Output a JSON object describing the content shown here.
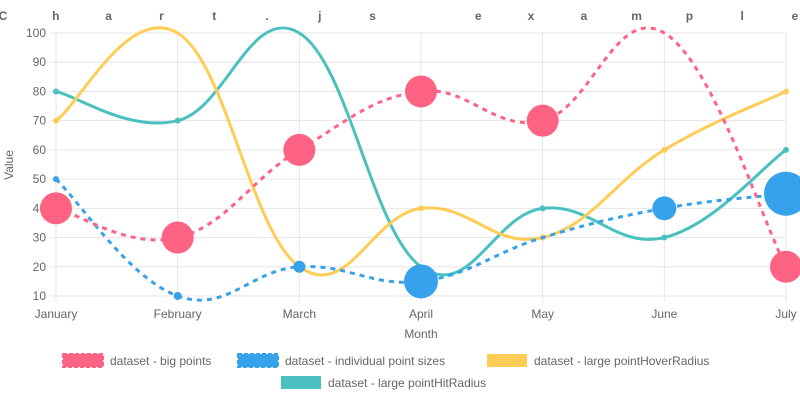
{
  "chart_data": {
    "type": "line",
    "title": "Chart.js example",
    "xlabel": "Month",
    "ylabel": "Value",
    "ylim": [
      10,
      100
    ],
    "yticks": [
      10,
      20,
      30,
      40,
      50,
      60,
      70,
      80,
      90,
      100
    ],
    "grid": true,
    "legend_position": "bottom",
    "categories": [
      "January",
      "February",
      "March",
      "April",
      "May",
      "June",
      "July"
    ],
    "series": [
      {
        "name": "dataset - big points",
        "values": [
          40,
          30,
          60,
          80,
          70,
          100,
          20
        ],
        "color": "#ff6384",
        "dashed": true,
        "point_radius": [
          16,
          16,
          16,
          16,
          16,
          0,
          16
        ]
      },
      {
        "name": "dataset - individual point sizes",
        "values": [
          50,
          10,
          20,
          15,
          30,
          40,
          45
        ],
        "color": "#36a2eb",
        "dashed": true,
        "point_radius": [
          3,
          4,
          6,
          17,
          0,
          12,
          22
        ]
      },
      {
        "name": "dataset - large pointHoverRadius",
        "values": [
          70,
          100,
          20,
          40,
          30,
          60,
          80
        ],
        "color": "#ffcd56",
        "dashed": false,
        "point_radius": [
          3,
          0,
          0,
          3,
          3,
          3,
          3
        ]
      },
      {
        "name": "dataset - large pointHitRadius",
        "values": [
          80,
          70,
          100,
          20,
          40,
          30,
          60
        ],
        "color": "#4bc0c0",
        "dashed": false,
        "point_radius": [
          3,
          3,
          0,
          0,
          3,
          3,
          3
        ]
      }
    ]
  }
}
